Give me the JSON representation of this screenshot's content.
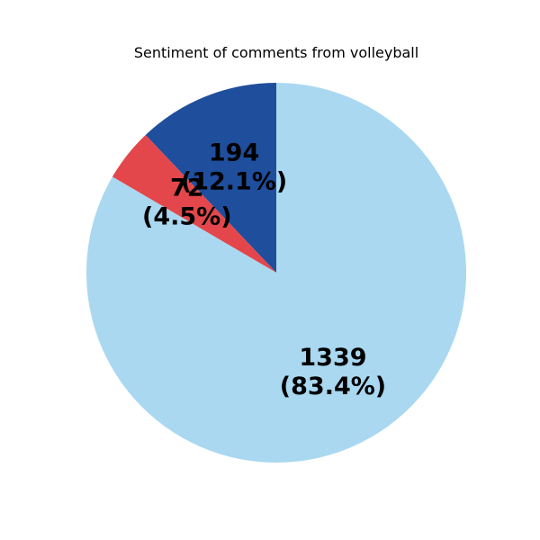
{
  "chart_data": {
    "type": "pie",
    "title": "Sentiment of comments from volleyball",
    "start_angle_deg": 90,
    "direction": "counterclockwise",
    "slices": [
      {
        "value": 194,
        "label": "194\n(12.1%)",
        "color": "#1f4e9c"
      },
      {
        "value": 72,
        "label": "72\n(4.5%)",
        "color": "#e3474b"
      },
      {
        "value": 1339,
        "label": "1339\n(83.4%)",
        "color": "#a9d8f0"
      }
    ]
  }
}
